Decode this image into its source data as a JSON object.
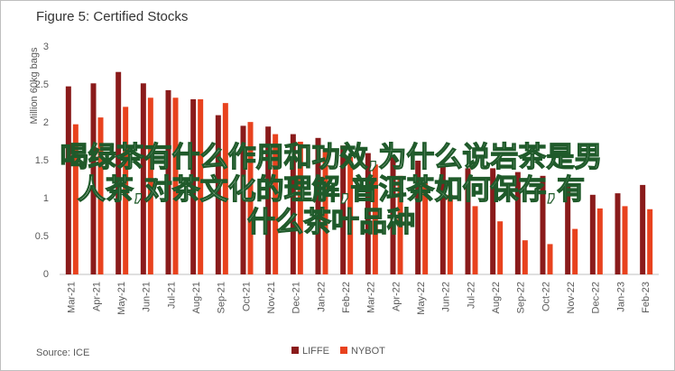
{
  "chart_data": {
    "type": "bar",
    "title": "Figure 5: Certified Stocks",
    "y_label": "Million 60kg bags",
    "source": "Source: ICE",
    "categories": [
      "Mar-21",
      "Apr-21",
      "May-21",
      "Jun-21",
      "Jul-21",
      "Aug-21",
      "Sep-21",
      "Oct-21",
      "Nov-21",
      "Dec-21",
      "Jan-22",
      "Feb-22",
      "Mar-22",
      "Apr-22",
      "May-22",
      "Jun-22",
      "Jul-22",
      "Aug-22",
      "Sep-22",
      "Oct-22",
      "Nov-22",
      "Dec-22",
      "Jan-23",
      "Feb-23"
    ],
    "series": [
      {
        "name": "LIFFE",
        "color": "#8a1b1b",
        "values": [
          2.48,
          2.52,
          2.67,
          2.52,
          2.43,
          2.31,
          2.1,
          1.96,
          1.95,
          1.85,
          1.8,
          1.7,
          1.6,
          1.55,
          1.5,
          1.45,
          1.4,
          1.4,
          1.35,
          1.3,
          1.2,
          1.05,
          1.07,
          1.18
        ]
      },
      {
        "name": "NYBOT",
        "color": "#e8421e",
        "values": [
          1.98,
          2.07,
          2.21,
          2.33,
          2.33,
          2.31,
          2.26,
          2.01,
          1.85,
          1.75,
          1.65,
          1.55,
          1.45,
          1.3,
          1.2,
          1.05,
          0.9,
          0.7,
          0.45,
          0.4,
          0.6,
          0.87,
          0.9,
          0.86
        ]
      }
    ],
    "ylim": [
      0,
      3
    ],
    "yticks": [
      0,
      0.5,
      1,
      1.5,
      2,
      2.5,
      3
    ],
    "grid": false
  },
  "overlay_text": [
    "喝绿茶有什么作用和功效,为什么说岩茶是男",
    "人茶,对茶文化的理解,普洱茶如何保存,有",
    "什么茶叶品种"
  ]
}
